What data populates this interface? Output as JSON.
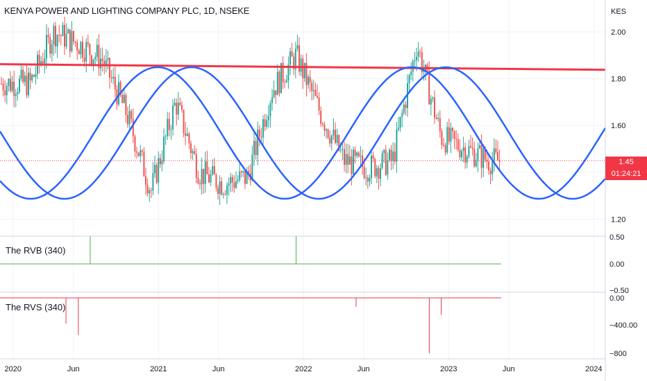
{
  "header": {
    "title": "KENYA POWER AND LIGHTING COMPANY PLC, 1D, NSEKE"
  },
  "price_axis": {
    "currency": "KES"
  },
  "last_price": {
    "value": "1.45",
    "countdown": "01:24:21"
  },
  "panes": {
    "rvb_label": "The RVB (340)",
    "rvs_label": "The RVS (340)"
  },
  "colors": {
    "up": "#26a69a",
    "down": "#ef5350",
    "resistance": "#f23645",
    "cycle": "#2962ff",
    "rvb": "#4caf50",
    "rvs": "#f23645",
    "grid": "#f0f3fa"
  },
  "chart_data": [
    {
      "type": "candlestick",
      "title": "KENYA POWER AND LIGHTING COMPANY PLC, 1D, NSEKE",
      "x_ticks": [
        "2020",
        "Jun",
        "2021",
        "Jun",
        "2022",
        "Jun",
        "2023",
        "Jun",
        "2024"
      ],
      "y_ticks": [
        "2.00",
        "1.80",
        "1.60",
        "1.45",
        "1.20"
      ],
      "ylim": [
        1.1,
        2.1
      ],
      "last_value": 1.45,
      "approx_closes": [
        {
          "date": "2020-02",
          "close": 1.78
        },
        {
          "date": "2020-04",
          "close": 2.0
        },
        {
          "date": "2020-06",
          "close": 1.95
        },
        {
          "date": "2020-08",
          "close": 1.88
        },
        {
          "date": "2020-10",
          "close": 1.65
        },
        {
          "date": "2020-12",
          "close": 1.32
        },
        {
          "date": "2021-02",
          "close": 1.7
        },
        {
          "date": "2021-04",
          "close": 1.4
        },
        {
          "date": "2021-06",
          "close": 1.35
        },
        {
          "date": "2021-08",
          "close": 1.38
        },
        {
          "date": "2021-10",
          "close": 1.75
        },
        {
          "date": "2021-12",
          "close": 1.9
        },
        {
          "date": "2022-02",
          "close": 1.65
        },
        {
          "date": "2022-04",
          "close": 1.45
        },
        {
          "date": "2022-06",
          "close": 1.42
        },
        {
          "date": "2022-08",
          "close": 1.45
        },
        {
          "date": "2022-10",
          "close": 1.95
        },
        {
          "date": "2022-12",
          "close": 1.55
        },
        {
          "date": "2023-02",
          "close": 1.5
        },
        {
          "date": "2023-04",
          "close": 1.45
        }
      ],
      "overlays": [
        {
          "type": "resistance_line",
          "from": 1.86,
          "to": 1.84
        },
        {
          "type": "sine_cycles",
          "count": 2
        }
      ]
    },
    {
      "type": "bar",
      "title": "The RVB (340)",
      "y_ticks": [
        "0.50",
        "0.00",
        "−0.50"
      ],
      "spikes": [
        {
          "date": "2020-07",
          "value": 1
        },
        {
          "date": "2021-12",
          "value": 1
        }
      ]
    },
    {
      "type": "bar",
      "title": "The RVS (340)",
      "y_ticks": [
        "0.00",
        "−400.00",
        "−800"
      ],
      "spikes": [
        {
          "date": "2020-05",
          "value": -380
        },
        {
          "date": "2020-06",
          "value": -550
        },
        {
          "date": "2022-05",
          "value": -130
        },
        {
          "date": "2022-11",
          "value": -820
        },
        {
          "date": "2022-12",
          "value": -250
        }
      ]
    }
  ]
}
